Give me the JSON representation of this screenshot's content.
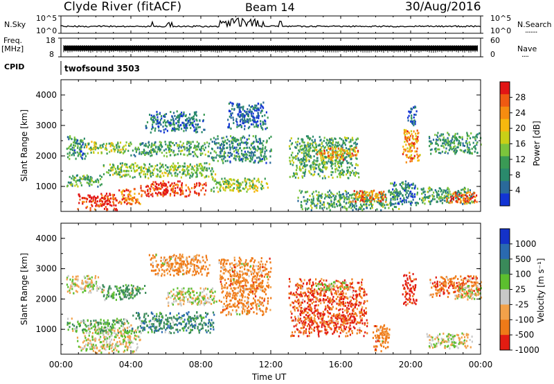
{
  "header": {
    "station": "Clyde River (fitACF)",
    "beam": "Beam 14",
    "date": "30/Aug/2016"
  },
  "panels": {
    "nsky": {
      "left_label": "N.Sky",
      "left_top_tick": "10^5",
      "left_bottom_tick": "10^0",
      "right_top_tick": "10^5",
      "right_bottom_tick": "10^0",
      "right_label": "N.Search",
      "right_dots": "·······"
    },
    "freq": {
      "left_label_1": "Freq.",
      "left_label_2": "[MHz]",
      "left_top_tick": "18",
      "left_bottom_tick": "8",
      "right_top_tick": "60",
      "right_bottom_tick": "0",
      "right_label": "Nave",
      "right_dots": "····"
    },
    "cpid": {
      "left_label": "CPID",
      "value": "twofsound 3503"
    }
  },
  "power_colorbar": {
    "label": "Power [dB]",
    "ticks": [
      "28",
      "24",
      "20",
      "16",
      "12",
      "8",
      "4"
    ],
    "colors": [
      "#e21515",
      "#ef5a12",
      "#f68c10",
      "#f6b80e",
      "#c9cf17",
      "#7cc43c",
      "#3a9a55",
      "#2a8a6c",
      "#2a6a9a",
      "#1234d4"
    ]
  },
  "velocity_colorbar": {
    "label": "Velocity [m s⁻¹]",
    "ticks": [
      "1000",
      "500",
      "100",
      "25",
      "-25",
      "-100",
      "-500",
      "-1000"
    ],
    "colors": [
      "#1432c8",
      "#2a6ab0",
      "#3a8a5a",
      "#5cbf2e",
      "#c8c8c8",
      "#f2a14a",
      "#ef7a18",
      "#e21c12"
    ]
  },
  "chart_data": [
    {
      "type": "heatmap",
      "panel": "power",
      "ylabel": "Slant Range [km]",
      "x_ticks": [
        "00:00",
        "04:00",
        "08:00",
        "12:00",
        "16:00",
        "20:00",
        "00:00"
      ],
      "y_ticks": [
        "1000",
        "2000",
        "3000",
        "4000"
      ],
      "xlim": [
        0,
        24
      ],
      "ylim": [
        180,
        4500
      ],
      "zlabel": "Power [dB]",
      "zlim": [
        0,
        30
      ],
      "blobs": [
        {
          "t": [
            0.9,
            3.2
          ],
          "r": [
            250,
            800
          ],
          "v": 28
        },
        {
          "t": [
            3.2,
            4.5
          ],
          "r": [
            450,
            950
          ],
          "v": 24
        },
        {
          "t": [
            4.5,
            8.3
          ],
          "r": [
            700,
            1200
          ],
          "v": 27
        },
        {
          "t": [
            0.3,
            2.4
          ],
          "r": [
            1000,
            1400
          ],
          "v": 10
        },
        {
          "t": [
            2.4,
            8.8
          ],
          "r": [
            1300,
            1800
          ],
          "v": 13
        },
        {
          "t": [
            8.5,
            11.8
          ],
          "r": [
            850,
            1300
          ],
          "v": 15
        },
        {
          "t": [
            0.3,
            1.4
          ],
          "r": [
            1900,
            2700
          ],
          "v": 8
        },
        {
          "t": [
            1.4,
            3.8
          ],
          "r": [
            2100,
            2500
          ],
          "v": 14
        },
        {
          "t": [
            3.8,
            8.5
          ],
          "r": [
            2000,
            2500
          ],
          "v": 10
        },
        {
          "t": [
            4.8,
            8.2
          ],
          "r": [
            2800,
            3500
          ],
          "v": 6
        },
        {
          "t": [
            8.5,
            12.0
          ],
          "r": [
            1800,
            2700
          ],
          "v": 8
        },
        {
          "t": [
            13.0,
            17.0
          ],
          "r": [
            1300,
            2700
          ],
          "v": 11
        },
        {
          "t": [
            14.5,
            17.0
          ],
          "r": [
            1900,
            2300
          ],
          "v": 22
        },
        {
          "t": [
            13.5,
            19.3
          ],
          "r": [
            250,
            900
          ],
          "v": 10
        },
        {
          "t": [
            16.5,
            18.6
          ],
          "r": [
            500,
            900
          ],
          "v": 24
        },
        {
          "t": [
            18.8,
            20.3
          ],
          "r": [
            400,
            1200
          ],
          "v": 7
        },
        {
          "t": [
            20.3,
            23.6
          ],
          "r": [
            450,
            1000
          ],
          "v": 10
        },
        {
          "t": [
            22.0,
            23.8
          ],
          "r": [
            450,
            850
          ],
          "v": 26
        },
        {
          "t": [
            21.0,
            24.0
          ],
          "r": [
            2100,
            2800
          ],
          "v": 9
        },
        {
          "t": [
            19.5,
            20.5
          ],
          "r": [
            1800,
            2900
          ],
          "v": 22
        },
        {
          "t": [
            19.8,
            20.3
          ],
          "r": [
            3000,
            3700
          ],
          "v": 5
        },
        {
          "t": [
            9.5,
            11.8
          ],
          "r": [
            2900,
            3800
          ],
          "v": 5
        }
      ]
    },
    {
      "type": "heatmap",
      "panel": "velocity",
      "ylabel": "Slant Range [km]",
      "xlabel": "Time UT",
      "x_ticks": [
        "00:00",
        "04:00",
        "08:00",
        "12:00",
        "16:00",
        "20:00",
        "00:00"
      ],
      "y_ticks": [
        "1000",
        "2000",
        "3000",
        "4000"
      ],
      "xlim": [
        0,
        24
      ],
      "ylim": [
        180,
        4500
      ],
      "zlabel": "Velocity [m s-1]",
      "zlim": [
        -1000,
        1000
      ],
      "blobs": [
        {
          "t": [
            0.9,
            4.5
          ],
          "r": [
            250,
            1100
          ],
          "v": 0
        },
        {
          "t": [
            0.3,
            4.0
          ],
          "r": [
            900,
            1400
          ],
          "v": 50
        },
        {
          "t": [
            4.0,
            8.8
          ],
          "r": [
            900,
            1600
          ],
          "v": 200
        },
        {
          "t": [
            0.3,
            2.2
          ],
          "r": [
            2200,
            2800
          ],
          "v": 0
        },
        {
          "t": [
            2.2,
            4.8
          ],
          "r": [
            2000,
            2500
          ],
          "v": 80
        },
        {
          "t": [
            6.0,
            9.0
          ],
          "r": [
            1800,
            2400
          ],
          "v": 0
        },
        {
          "t": [
            5.0,
            8.5
          ],
          "r": [
            2800,
            3500
          ],
          "v": -100
        },
        {
          "t": [
            9.0,
            12.0
          ],
          "r": [
            1500,
            3400
          ],
          "v": -150
        },
        {
          "t": [
            13.0,
            17.5
          ],
          "r": [
            800,
            2700
          ],
          "v": -300
        },
        {
          "t": [
            14.5,
            16.5
          ],
          "r": [
            2300,
            2600
          ],
          "v": 0
        },
        {
          "t": [
            17.8,
            18.8
          ],
          "r": [
            300,
            1200
          ],
          "v": -150
        },
        {
          "t": [
            19.5,
            20.3
          ],
          "r": [
            1800,
            2900
          ],
          "v": -600
        },
        {
          "t": [
            20.8,
            23.5
          ],
          "r": [
            400,
            900
          ],
          "v": 0
        },
        {
          "t": [
            21.0,
            24.0
          ],
          "r": [
            2100,
            2800
          ],
          "v": -200
        },
        {
          "t": [
            22.5,
            24.0
          ],
          "r": [
            2000,
            2500
          ],
          "v": 0
        }
      ]
    }
  ]
}
